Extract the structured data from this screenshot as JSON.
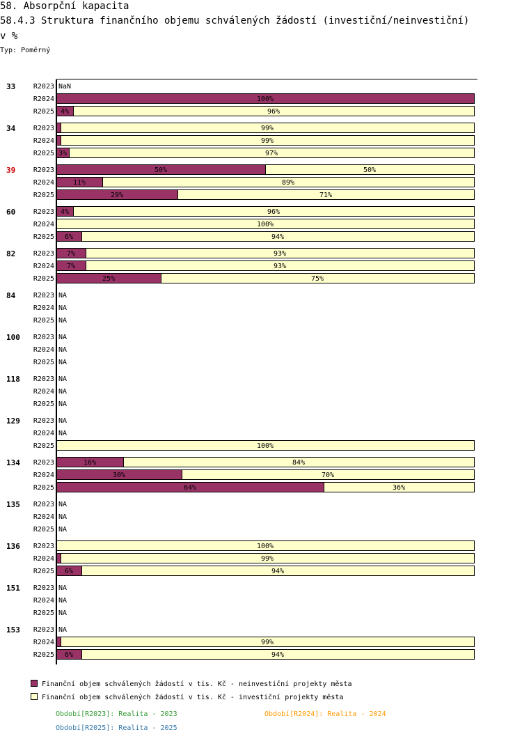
{
  "header": {
    "title": "58. Absorpční kapacita",
    "subtitle": "58.4.3 Struktura finančního objemu schválených žádostí (investiční/neinvestiční)",
    "unit": "v %",
    "type_label": "Typ: Poměrný"
  },
  "colors": {
    "neinvesticni": "#993366",
    "investicni": "#ffffcc",
    "highlight_group": "#cc0000",
    "period_2023": "#339933",
    "period_2024": "#ff9900",
    "period_2025": "#3377aa"
  },
  "chart_data": {
    "type": "bar",
    "orientation": "horizontal",
    "stacked": true,
    "normalized": true,
    "xlim": [
      0,
      100
    ],
    "grid": false,
    "legend_position": "bottom",
    "series": [
      {
        "name": "Finanční objem schválených žádostí v tis. Kč - neinvestiční projekty města",
        "color": "#993366"
      },
      {
        "name": "Finanční objem schválených žádostí v tis. Kč - investiční projekty města",
        "color": "#ffffcc"
      }
    ],
    "groups": [
      {
        "id": "33",
        "highlight": false,
        "rows": [
          {
            "period": "R2023",
            "na_text": "NaN"
          },
          {
            "period": "R2024",
            "values": [
              100,
              0
            ],
            "labels": [
              "100%",
              ""
            ]
          },
          {
            "period": "R2025",
            "values": [
              4,
              96
            ],
            "labels": [
              "4%",
              "96%"
            ]
          }
        ]
      },
      {
        "id": "34",
        "highlight": false,
        "rows": [
          {
            "period": "R2023",
            "values": [
              1,
              99
            ],
            "labels": [
              "",
              "99%"
            ]
          },
          {
            "period": "R2024",
            "values": [
              1,
              99
            ],
            "labels": [
              "",
              "99%"
            ]
          },
          {
            "period": "R2025",
            "values": [
              3,
              97
            ],
            "labels": [
              "3%",
              "97%"
            ]
          }
        ]
      },
      {
        "id": "39",
        "highlight": true,
        "rows": [
          {
            "period": "R2023",
            "values": [
              50,
              50
            ],
            "labels": [
              "50%",
              "50%"
            ]
          },
          {
            "period": "R2024",
            "values": [
              11,
              89
            ],
            "labels": [
              "11%",
              "89%"
            ]
          },
          {
            "period": "R2025",
            "values": [
              29,
              71
            ],
            "labels": [
              "29%",
              "71%"
            ]
          }
        ]
      },
      {
        "id": "60",
        "highlight": false,
        "rows": [
          {
            "period": "R2023",
            "values": [
              4,
              96
            ],
            "labels": [
              "4%",
              "96%"
            ]
          },
          {
            "period": "R2024",
            "values": [
              0,
              100
            ],
            "labels": [
              "",
              "100%"
            ]
          },
          {
            "period": "R2025",
            "values": [
              6,
              94
            ],
            "labels": [
              "6%",
              "94%"
            ]
          }
        ]
      },
      {
        "id": "82",
        "highlight": false,
        "rows": [
          {
            "period": "R2023",
            "values": [
              7,
              93
            ],
            "labels": [
              "7%",
              "93%"
            ]
          },
          {
            "period": "R2024",
            "values": [
              7,
              93
            ],
            "labels": [
              "7%",
              "93%"
            ]
          },
          {
            "period": "R2025",
            "values": [
              25,
              75
            ],
            "labels": [
              "25%",
              "75%"
            ]
          }
        ]
      },
      {
        "id": "84",
        "highlight": false,
        "rows": [
          {
            "period": "R2023",
            "na_text": "NA"
          },
          {
            "period": "R2024",
            "na_text": "NA"
          },
          {
            "period": "R2025",
            "na_text": "NA"
          }
        ]
      },
      {
        "id": "100",
        "highlight": false,
        "rows": [
          {
            "period": "R2023",
            "na_text": "NA"
          },
          {
            "period": "R2024",
            "na_text": "NA"
          },
          {
            "period": "R2025",
            "na_text": "NA"
          }
        ]
      },
      {
        "id": "118",
        "highlight": false,
        "rows": [
          {
            "period": "R2023",
            "na_text": "NA"
          },
          {
            "period": "R2024",
            "na_text": "NA"
          },
          {
            "period": "R2025",
            "na_text": "NA"
          }
        ]
      },
      {
        "id": "129",
        "highlight": false,
        "rows": [
          {
            "period": "R2023",
            "na_text": "NA"
          },
          {
            "period": "R2024",
            "na_text": "NA"
          },
          {
            "period": "R2025",
            "values": [
              0,
              100
            ],
            "labels": [
              "",
              "100%"
            ]
          }
        ]
      },
      {
        "id": "134",
        "highlight": false,
        "rows": [
          {
            "period": "R2023",
            "values": [
              16,
              84
            ],
            "labels": [
              "16%",
              "84%"
            ]
          },
          {
            "period": "R2024",
            "values": [
              30,
              70
            ],
            "labels": [
              "30%",
              "70%"
            ]
          },
          {
            "period": "R2025",
            "values": [
              64,
              36
            ],
            "labels": [
              "64%",
              "36%"
            ]
          }
        ]
      },
      {
        "id": "135",
        "highlight": false,
        "rows": [
          {
            "period": "R2023",
            "na_text": "NA"
          },
          {
            "period": "R2024",
            "na_text": "NA"
          },
          {
            "period": "R2025",
            "na_text": "NA"
          }
        ]
      },
      {
        "id": "136",
        "highlight": false,
        "rows": [
          {
            "period": "R2023",
            "values": [
              0,
              100
            ],
            "labels": [
              "",
              "100%"
            ]
          },
          {
            "period": "R2024",
            "values": [
              1,
              99
            ],
            "labels": [
              "",
              "99%"
            ]
          },
          {
            "period": "R2025",
            "values": [
              6,
              94
            ],
            "labels": [
              "6%",
              "94%"
            ]
          }
        ]
      },
      {
        "id": "151",
        "highlight": false,
        "rows": [
          {
            "period": "R2023",
            "na_text": "NA"
          },
          {
            "period": "R2024",
            "na_text": "NA"
          },
          {
            "period": "R2025",
            "na_text": "NA"
          }
        ]
      },
      {
        "id": "153",
        "highlight": false,
        "rows": [
          {
            "period": "R2023",
            "na_text": "NA"
          },
          {
            "period": "R2024",
            "values": [
              1,
              99
            ],
            "labels": [
              "",
              "99%"
            ]
          },
          {
            "period": "R2025",
            "values": [
              6,
              94
            ],
            "labels": [
              "6%",
              "94%"
            ]
          }
        ]
      }
    ]
  },
  "legend": {
    "series": [
      {
        "label": "Finanční objem schválených žádostí v tis. Kč - neinvestiční projekty města"
      },
      {
        "label": "Finanční objem schválených žádostí v tis. Kč - investiční projekty města"
      }
    ],
    "periods": [
      {
        "label": "Období[R2023]: Realita - 2023"
      },
      {
        "label": "Období[R2024]: Realita - 2024"
      },
      {
        "label": "Období[R2025]: Realita - 2025"
      }
    ]
  }
}
